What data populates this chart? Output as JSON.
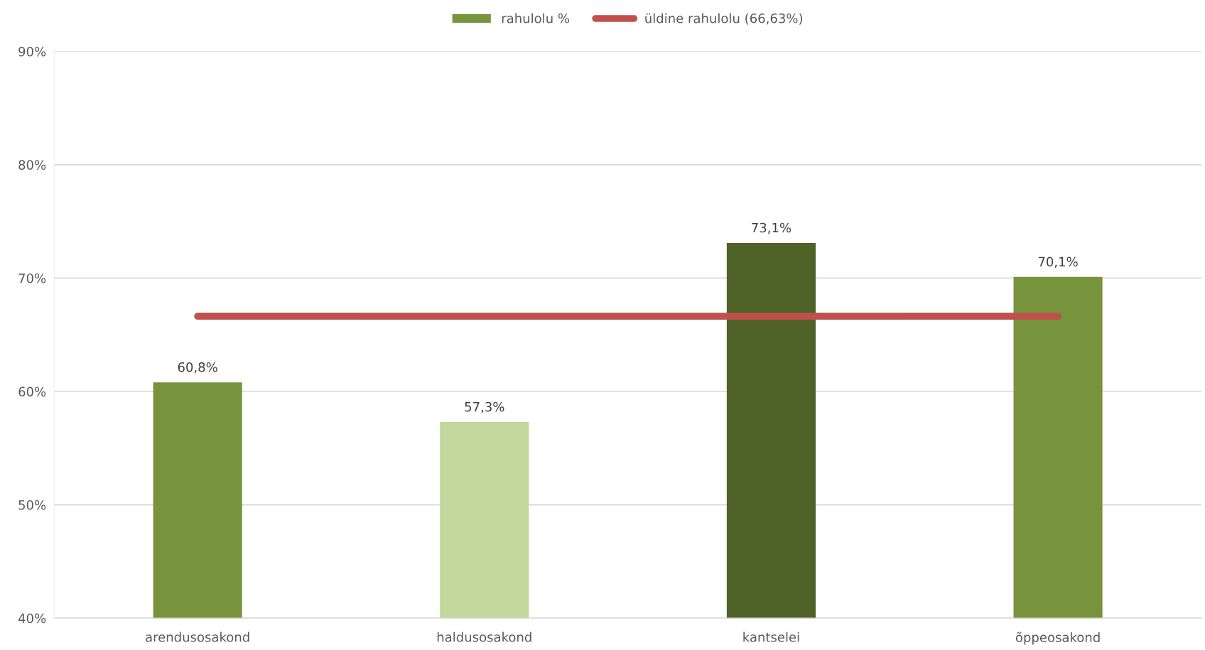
{
  "chart_data": {
    "type": "bar",
    "categories": [
      "arendusosakond",
      "haldusosakond",
      "kantselei",
      "õppeosakond"
    ],
    "series": [
      {
        "name": "rahulolu %",
        "color": "#77933c",
        "colors": [
          "#77933c",
          "#c3d69b",
          "#4f6228",
          "#77933c"
        ],
        "values": [
          60.8,
          57.3,
          73.1,
          70.1
        ],
        "value_labels": [
          "60,8%",
          "57,3%",
          "73,1%",
          "70,1%"
        ]
      },
      {
        "name": "üldine rahulolu (66,63%)",
        "type": "line",
        "color": "#c0504d",
        "values": [
          66.63,
          66.63,
          66.63,
          66.63
        ]
      }
    ],
    "ylim": [
      40,
      90
    ],
    "yticks": [
      {
        "value": 40,
        "label": "40%"
      },
      {
        "value": 50,
        "label": "50%"
      },
      {
        "value": 60,
        "label": "60%"
      },
      {
        "value": 70,
        "label": "70%"
      },
      {
        "value": 80,
        "label": "80%"
      },
      {
        "value": 90,
        "label": "90%"
      }
    ],
    "grid": "y",
    "legend": "top",
    "marker": "none",
    "line_style": "solid"
  }
}
